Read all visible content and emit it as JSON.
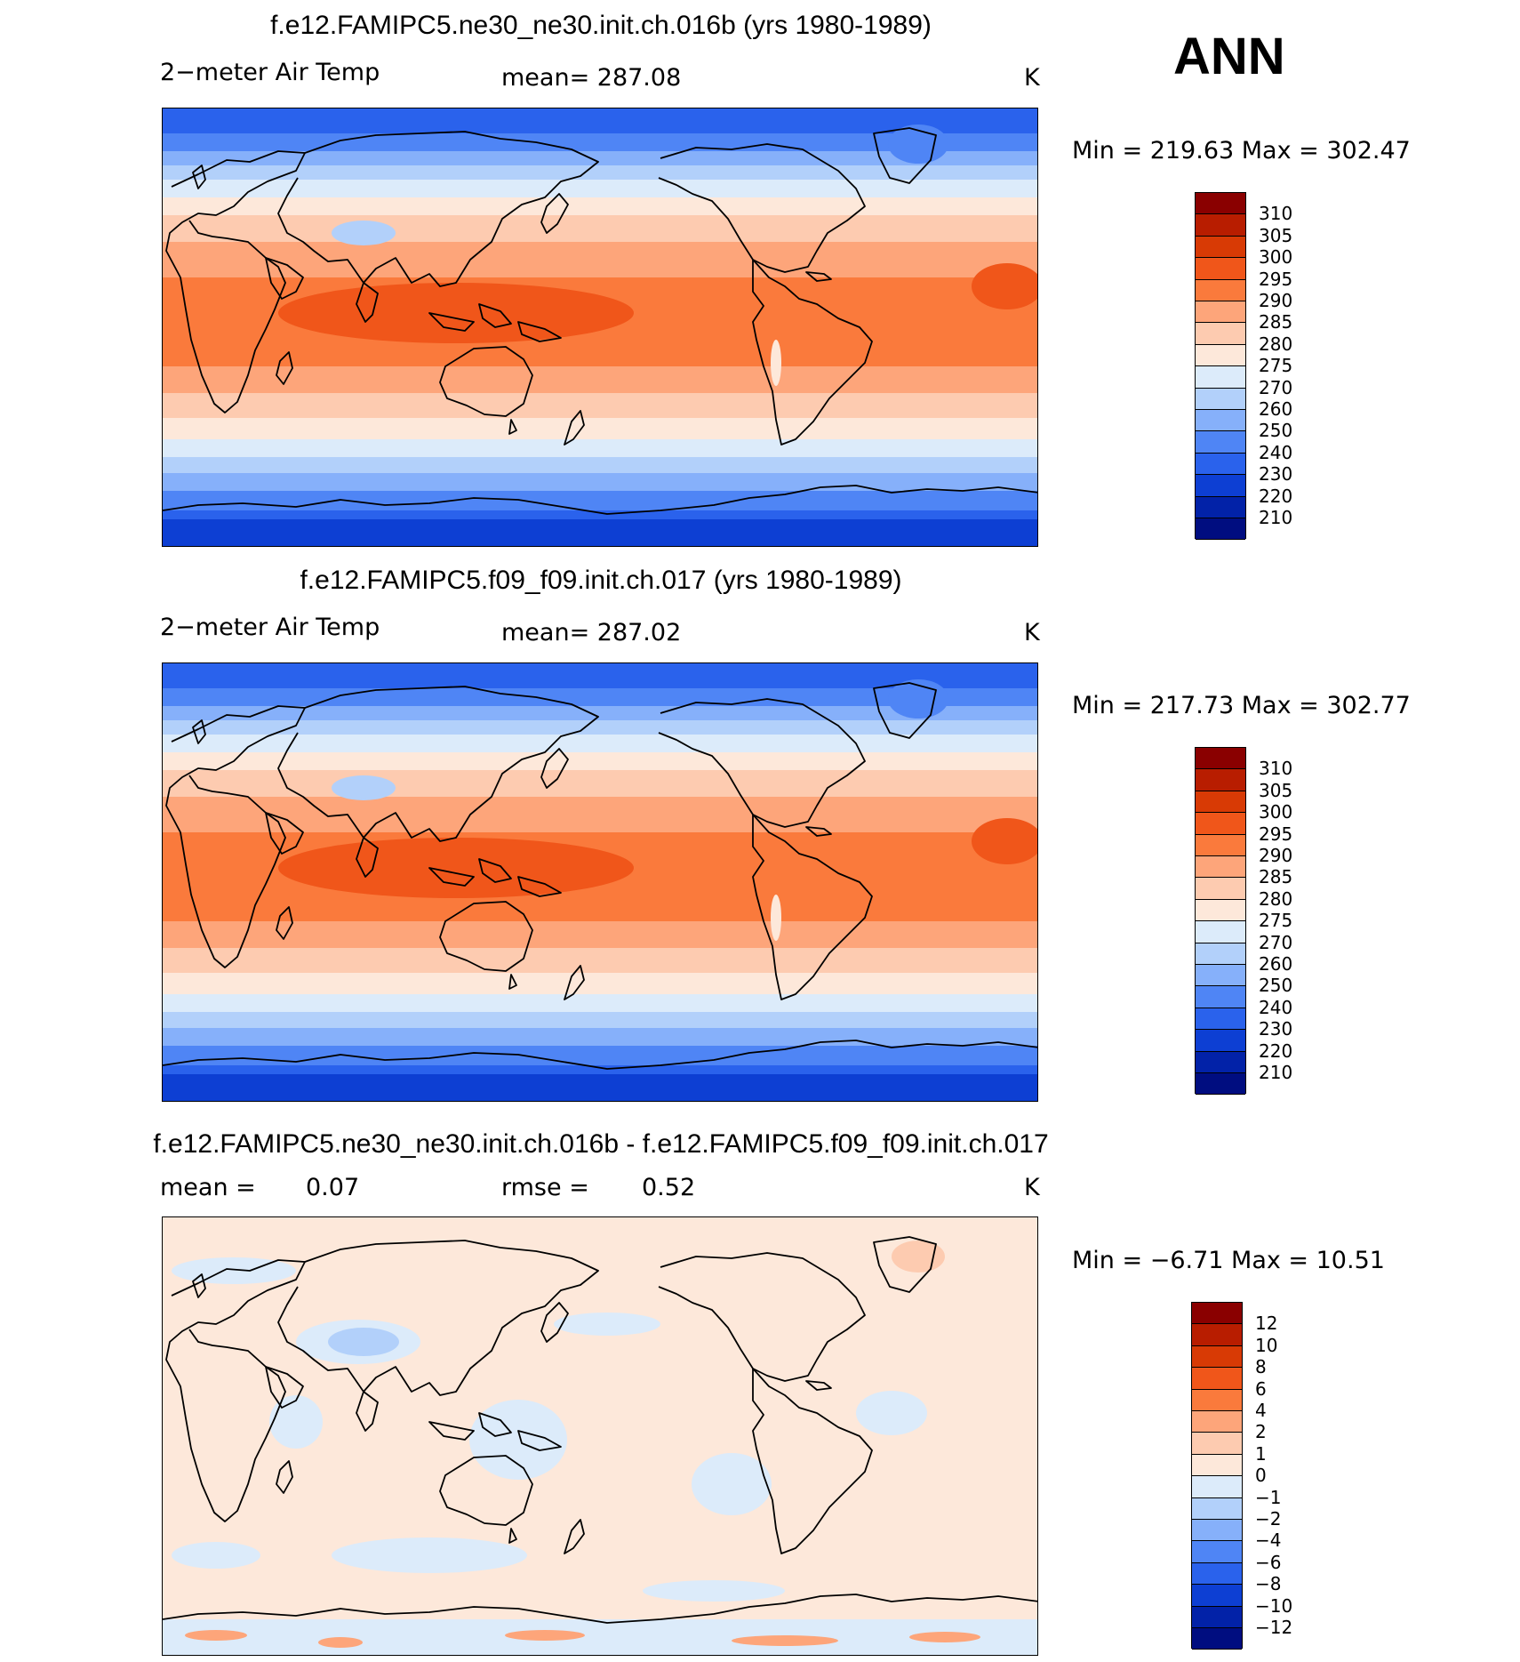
{
  "season": "ANN",
  "units": "K",
  "panels": [
    {
      "title": "f.e12.FAMIPC5.ne30_ne30.init.ch.016b (yrs 1980-1989)",
      "variable": "2−meter Air Temp",
      "stat": "mean=  287.08",
      "units": "K",
      "minmax": "Min  =  219.63  Max  =  302.47",
      "levels": [
        "310",
        "305",
        "300",
        "295",
        "290",
        "285",
        "280",
        "275",
        "270",
        "260",
        "250",
        "240",
        "230",
        "220",
        "210"
      ],
      "colors": [
        "#8a0000",
        "#b81d00",
        "#d83a05",
        "#f0561a",
        "#fa7a3c",
        "#fda57a",
        "#fdcbb0",
        "#fde8da",
        "#dcebfa",
        "#b2d0fa",
        "#86b0fa",
        "#4f85f5",
        "#2a62ec",
        "#0d3fd3",
        "#0222a8",
        "#000d80"
      ],
      "field": "temperature"
    },
    {
      "title": "f.e12.FAMIPC5.f09_f09.init.ch.017 (yrs 1980-1989)",
      "variable": "2−meter Air Temp",
      "stat": "mean=  287.02",
      "units": "K",
      "minmax": "Min  =  217.73  Max  =  302.77",
      "levels": [
        "310",
        "305",
        "300",
        "295",
        "290",
        "285",
        "280",
        "275",
        "270",
        "260",
        "250",
        "240",
        "230",
        "220",
        "210"
      ],
      "colors": [
        "#8a0000",
        "#b81d00",
        "#d83a05",
        "#f0561a",
        "#fa7a3c",
        "#fda57a",
        "#fdcbb0",
        "#fde8da",
        "#dcebfa",
        "#b2d0fa",
        "#86b0fa",
        "#4f85f5",
        "#2a62ec",
        "#0d3fd3",
        "#0222a8",
        "#000d80"
      ],
      "field": "temperature"
    },
    {
      "title": "f.e12.FAMIPC5.ne30_ne30.init.ch.016b - f.e12.FAMIPC5.f09_f09.init.ch.017",
      "variable": "mean  =",
      "stat_label": "rmse  =",
      "mean_value": "0.07",
      "rmse_value": "0.52",
      "units": "K",
      "minmax": "Min  =     −6.71  Max  =     10.51",
      "levels": [
        "12",
        "10",
        "8",
        "6",
        "4",
        "2",
        "1",
        "0",
        "−1",
        "−2",
        "−4",
        "−6",
        "−8",
        "−10",
        "−12"
      ],
      "colors": [
        "#8a0000",
        "#b81d00",
        "#d83a05",
        "#f0561a",
        "#fa7a3c",
        "#fda57a",
        "#fdcbb0",
        "#fde8da",
        "#dcebfa",
        "#b2d0fa",
        "#86b0fa",
        "#4f85f5",
        "#2a62ec",
        "#0d3fd3",
        "#0222a8",
        "#000d80"
      ],
      "field": "difference"
    }
  ]
}
